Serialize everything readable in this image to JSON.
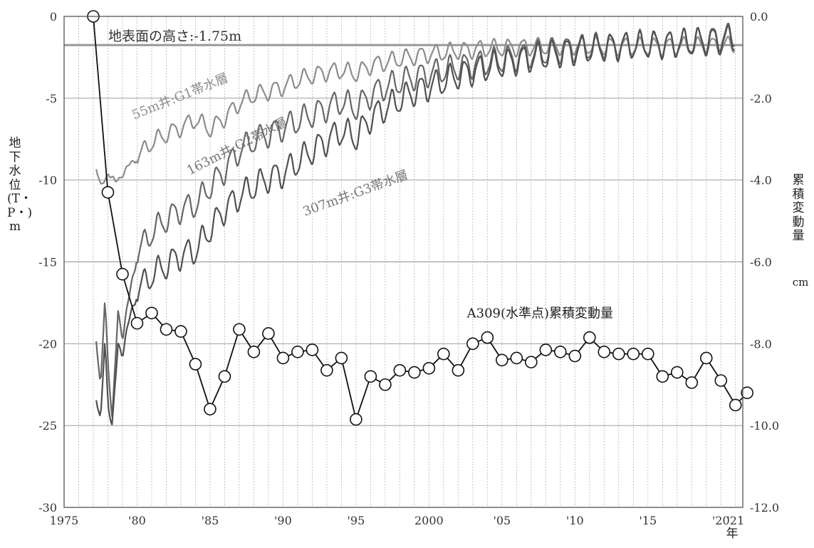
{
  "chart_data": {
    "type": "line",
    "x_unit_label": "年",
    "xlim": [
      1975,
      2021.5
    ],
    "x_ticks": [
      {
        "x": 1975,
        "label": "1975"
      },
      {
        "x": 1980,
        "label": "'80"
      },
      {
        "x": 1985,
        "label": "'85"
      },
      {
        "x": 1990,
        "label": "'90"
      },
      {
        "x": 1995,
        "label": "'95"
      },
      {
        "x": 2000,
        "label": "2000"
      },
      {
        "x": 2005,
        "label": "'05"
      },
      {
        "x": 2010,
        "label": "'10"
      },
      {
        "x": 2015,
        "label": "'15"
      },
      {
        "x": 2020,
        "label": "'20"
      },
      {
        "x": 2021,
        "label": "'21"
      }
    ],
    "y_left": {
      "label": "地下水位(T・P・)m",
      "lim": [
        -30,
        0
      ],
      "ticks": [
        0,
        -5,
        -10,
        -15,
        -20,
        -25,
        -30
      ]
    },
    "y_right": {
      "label": "累積変動量",
      "unit": "cm",
      "lim": [
        -12.0,
        0.0
      ],
      "ticks": [
        "0.0",
        "-2.0",
        "-4.0",
        "-6.0",
        "-8.0",
        "-10.0",
        "-12.0"
      ]
    },
    "grid": {
      "vertical_per_year": true,
      "horizontal": true
    },
    "ground_level": {
      "label": "地表面の高さ:-1.75m",
      "value": -1.75,
      "color": "#9a9a9a"
    },
    "series": [
      {
        "name": "55m井:G1帯水層",
        "axis": "left",
        "color": "#8c8c8c",
        "seasonal_amplitude": 0.5,
        "points": [
          [
            1977.2,
            -9.3
          ],
          [
            1977.5,
            -10.5
          ],
          [
            1978,
            -9.5
          ],
          [
            1978.5,
            -10.2
          ],
          [
            1979,
            -9.6
          ],
          [
            1980,
            -8.6
          ],
          [
            1981,
            -7.7
          ],
          [
            1982,
            -7.2
          ],
          [
            1983,
            -6.8
          ],
          [
            1984,
            -6.3
          ],
          [
            1985,
            -6.9
          ],
          [
            1986,
            -6.2
          ],
          [
            1987,
            -5.3
          ],
          [
            1988,
            -4.8
          ],
          [
            1989,
            -4.6
          ],
          [
            1990,
            -4.3
          ],
          [
            1991,
            -3.9
          ],
          [
            1992,
            -3.6
          ],
          [
            1993,
            -3.4
          ],
          [
            1994,
            -3.3
          ],
          [
            1995,
            -3.5
          ],
          [
            1996,
            -3.0
          ],
          [
            1997,
            -2.8
          ],
          [
            1998,
            -2.6
          ],
          [
            1999,
            -2.45
          ],
          [
            2000,
            -2.3
          ],
          [
            2002,
            -2.1
          ],
          [
            2004,
            -1.95
          ],
          [
            2006,
            -1.9
          ],
          [
            2010,
            -1.8
          ],
          [
            2015,
            -1.85
          ],
          [
            2021,
            -1.75
          ]
        ]
      },
      {
        "name": "163m井:G2帯水層",
        "axis": "left",
        "color": "#666666",
        "seasonal_amplitude": 0.75,
        "points": [
          [
            1977.2,
            -19.8
          ],
          [
            1977.5,
            -23
          ],
          [
            1977.8,
            -17
          ],
          [
            1978,
            -21
          ],
          [
            1978.3,
            -24.8
          ],
          [
            1978.7,
            -18
          ],
          [
            1979,
            -19.5
          ],
          [
            1979.5,
            -17
          ],
          [
            1980,
            -14.5
          ],
          [
            1981,
            -13.2
          ],
          [
            1982,
            -12.4
          ],
          [
            1983,
            -11.8
          ],
          [
            1984,
            -11.5
          ],
          [
            1985,
            -10.4
          ],
          [
            1986,
            -9.4
          ],
          [
            1987,
            -8.2
          ],
          [
            1988,
            -7.6
          ],
          [
            1989,
            -7.2
          ],
          [
            1990,
            -6.8
          ],
          [
            1991,
            -6.4
          ],
          [
            1992,
            -6.0
          ],
          [
            1993,
            -5.6
          ],
          [
            1994,
            -5.2
          ],
          [
            1995,
            -5.6
          ],
          [
            1996,
            -4.8
          ],
          [
            1997,
            -4.3
          ],
          [
            1998,
            -4.0
          ],
          [
            1999,
            -3.7
          ],
          [
            2000,
            -3.5
          ],
          [
            2002,
            -3.1
          ],
          [
            2004,
            -2.8
          ],
          [
            2006,
            -2.5
          ],
          [
            2008,
            -2.2
          ],
          [
            2010,
            -1.95
          ],
          [
            2012,
            -1.8
          ],
          [
            2014,
            -1.75
          ],
          [
            2016,
            -1.7
          ],
          [
            2018,
            -1.55
          ],
          [
            2020,
            -1.3
          ],
          [
            2021,
            -1.15
          ]
        ]
      },
      {
        "name": "307m井:G3帯水層",
        "axis": "left",
        "color": "#505050",
        "seasonal_amplitude": 0.8,
        "points": [
          [
            1977.2,
            -23.4
          ],
          [
            1977.5,
            -25
          ],
          [
            1977.8,
            -19.5
          ],
          [
            1978,
            -23.5
          ],
          [
            1978.3,
            -25.2
          ],
          [
            1978.7,
            -20
          ],
          [
            1979,
            -20.5
          ],
          [
            1979.5,
            -18.5
          ],
          [
            1980,
            -16.8
          ],
          [
            1981,
            -15.8
          ],
          [
            1982,
            -15.2
          ],
          [
            1983,
            -14.6
          ],
          [
            1984,
            -14.3
          ],
          [
            1985,
            -13.0
          ],
          [
            1986,
            -11.8
          ],
          [
            1987,
            -11.0
          ],
          [
            1988,
            -10.4
          ],
          [
            1989,
            -9.9
          ],
          [
            1990,
            -9.6
          ],
          [
            1991,
            -8.9
          ],
          [
            1992,
            -8.2
          ],
          [
            1993,
            -7.6
          ],
          [
            1994,
            -7.0
          ],
          [
            1995,
            -7.4
          ],
          [
            1996,
            -6.2
          ],
          [
            1997,
            -5.6
          ],
          [
            1998,
            -5.1
          ],
          [
            1999,
            -4.6
          ],
          [
            2000,
            -4.3
          ],
          [
            2002,
            -3.6
          ],
          [
            2004,
            -3.1
          ],
          [
            2006,
            -2.7
          ],
          [
            2008,
            -2.4
          ],
          [
            2010,
            -2.1
          ],
          [
            2012,
            -1.9
          ],
          [
            2014,
            -1.75
          ],
          [
            2016,
            -1.7
          ],
          [
            2018,
            -1.6
          ],
          [
            2020,
            -1.45
          ],
          [
            2021,
            -1.35
          ]
        ]
      },
      {
        "name": "A309(水準点)累積変動量",
        "axis": "right",
        "color": "#111111",
        "markers": "open-circle",
        "points": [
          [
            1977,
            0.0
          ],
          [
            1978,
            -4.3
          ],
          [
            1979,
            -6.3
          ],
          [
            1980,
            -7.5
          ],
          [
            1981,
            -7.25
          ],
          [
            1982,
            -7.65
          ],
          [
            1983,
            -7.7
          ],
          [
            1984,
            -8.5
          ],
          [
            1985,
            -9.6
          ],
          [
            1986,
            -8.8
          ],
          [
            1987,
            -7.65
          ],
          [
            1988,
            -8.2
          ],
          [
            1989,
            -7.75
          ],
          [
            1990,
            -8.35
          ],
          [
            1991,
            -8.2
          ],
          [
            1992,
            -8.15
          ],
          [
            1993,
            -8.65
          ],
          [
            1994,
            -8.35
          ],
          [
            1995,
            -9.85
          ],
          [
            1996,
            -8.8
          ],
          [
            1997,
            -9.0
          ],
          [
            1998,
            -8.65
          ],
          [
            1999,
            -8.7
          ],
          [
            2000,
            -8.6
          ],
          [
            2001,
            -8.25
          ],
          [
            2002,
            -8.65
          ],
          [
            2003,
            -8.0
          ],
          [
            2004,
            -7.85
          ],
          [
            2005,
            -8.4
          ],
          [
            2006,
            -8.35
          ],
          [
            2007,
            -8.45
          ],
          [
            2008,
            -8.15
          ],
          [
            2009,
            -8.2
          ],
          [
            2010,
            -8.3
          ],
          [
            2011,
            -7.85
          ],
          [
            2012,
            -8.2
          ],
          [
            2013,
            -8.25
          ],
          [
            2014,
            -8.25
          ],
          [
            2015,
            -8.25
          ],
          [
            2016,
            -8.8
          ],
          [
            2017,
            -8.7
          ],
          [
            2018,
            -8.95
          ],
          [
            2019,
            -8.35
          ],
          [
            2020,
            -8.9
          ],
          [
            2021,
            -9.5
          ],
          [
            2021.8,
            -9.2
          ]
        ]
      }
    ],
    "annotations": [
      {
        "text": "55m井:G1帯水層",
        "x": 1979.8,
        "y": -6.3,
        "rotation": -22,
        "color": "#8c8c8c"
      },
      {
        "text": "163m井:G2帯水層",
        "x": 1983.6,
        "y": -9.7,
        "rotation": -27,
        "color": "#777777"
      },
      {
        "text": "307m井:G3帯水層",
        "x": 1991.5,
        "y": -12.2,
        "rotation": -20,
        "color": "#777777"
      },
      {
        "text": "A309(水準点)累積変動量",
        "x": 2002.6,
        "y": -18.4,
        "rotation": 0,
        "color": "#222222"
      }
    ]
  }
}
